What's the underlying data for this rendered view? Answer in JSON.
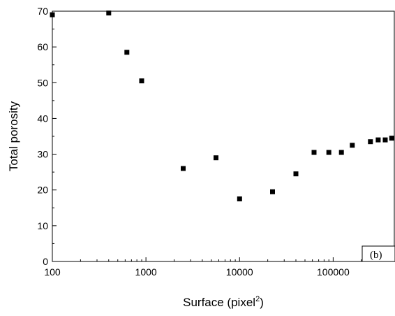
{
  "chart_data": {
    "type": "scatter",
    "title": "",
    "xlabel": "Surface (pixel",
    "xlabel_superscript": "2",
    "xlabel_suffix": ")",
    "ylabel": "Total porosity",
    "xscale": "log",
    "xlim": [
      100,
      450000
    ],
    "ylim": [
      0,
      70
    ],
    "grid": false,
    "legend": "none",
    "x_ticks": [
      100,
      1000,
      10000,
      100000
    ],
    "x_tick_labels": [
      "100",
      "1000",
      "10000",
      "100000"
    ],
    "y_ticks": [
      0,
      10,
      20,
      30,
      40,
      50,
      60,
      70
    ],
    "y_tick_labels": [
      "0",
      "10",
      "20",
      "30",
      "40",
      "50",
      "60",
      "70"
    ],
    "marker_color": "#000000",
    "marker": "square",
    "points": [
      {
        "x": 100,
        "y": 69
      },
      {
        "x": 400,
        "y": 69.5
      },
      {
        "x": 625,
        "y": 58.5
      },
      {
        "x": 900,
        "y": 50.5
      },
      {
        "x": 2500,
        "y": 26
      },
      {
        "x": 5600,
        "y": 29
      },
      {
        "x": 10000,
        "y": 17.5
      },
      {
        "x": 22500,
        "y": 19.5
      },
      {
        "x": 40000,
        "y": 24.5
      },
      {
        "x": 62500,
        "y": 30.5
      },
      {
        "x": 90000,
        "y": 30.5
      },
      {
        "x": 122500,
        "y": 30.5
      },
      {
        "x": 160000,
        "y": 32.5
      },
      {
        "x": 250000,
        "y": 33.5
      },
      {
        "x": 302500,
        "y": 34
      },
      {
        "x": 360000,
        "y": 34
      },
      {
        "x": 422500,
        "y": 34.5
      }
    ],
    "panel_label": "(b)"
  }
}
